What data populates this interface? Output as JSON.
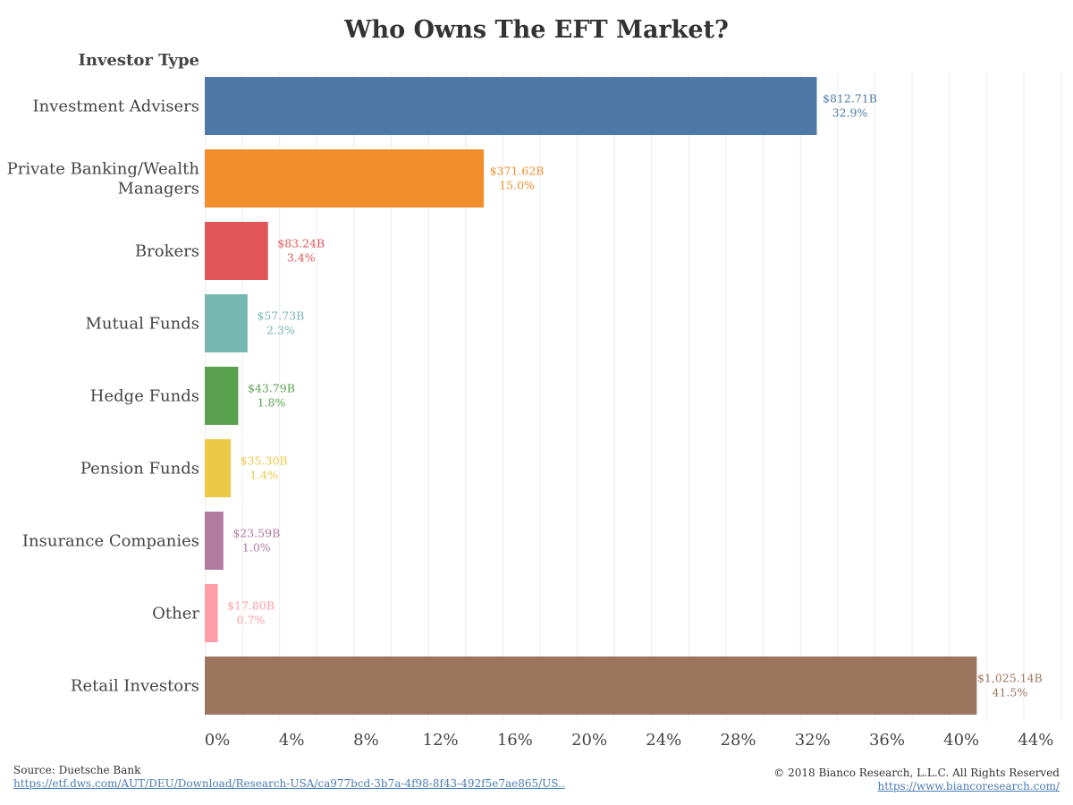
{
  "chart_data": {
    "type": "bar",
    "orientation": "horizontal",
    "title": "Who Owns The EFT Market?",
    "ylabel": "Investor Type",
    "xlabel": "",
    "xlim": [
      0,
      46
    ],
    "xticks": [
      "0%",
      "4%",
      "8%",
      "12%",
      "16%",
      "20%",
      "24%",
      "28%",
      "32%",
      "36%",
      "40%",
      "44%"
    ],
    "xtick_values": [
      0,
      4,
      8,
      12,
      16,
      20,
      24,
      28,
      32,
      36,
      40,
      44
    ],
    "grid": true,
    "categories": [
      {
        "label_lines": [
          "Investment Advisers"
        ],
        "value": 32.9,
        "amount": "$812.71B",
        "pct": "32.9%",
        "color": "#4e79a7"
      },
      {
        "label_lines": [
          "Private Banking/Wealth",
          "Managers"
        ],
        "value": 15.0,
        "amount": "$371.62B",
        "pct": "15.0%",
        "color": "#f28e2b"
      },
      {
        "label_lines": [
          "Brokers"
        ],
        "value": 3.4,
        "amount": "$83.24B",
        "pct": "3.4%",
        "color": "#e15759"
      },
      {
        "label_lines": [
          "Mutual Funds"
        ],
        "value": 2.3,
        "amount": "$57.73B",
        "pct": "2.3%",
        "color": "#76b7b2"
      },
      {
        "label_lines": [
          "Hedge Funds"
        ],
        "value": 1.8,
        "amount": "$43.79B",
        "pct": "1.8%",
        "color": "#59a14f"
      },
      {
        "label_lines": [
          "Pension Funds"
        ],
        "value": 1.4,
        "amount": "$35.30B",
        "pct": "1.4%",
        "color": "#edc948"
      },
      {
        "label_lines": [
          "Insurance Companies"
        ],
        "value": 1.0,
        "amount": "$23.59B",
        "pct": "1.0%",
        "color": "#b07aa1"
      },
      {
        "label_lines": [
          "Other"
        ],
        "value": 0.7,
        "amount": "$17.80B",
        "pct": "0.7%",
        "color": "#ff9da7"
      },
      {
        "label_lines": [
          "Retail Investors"
        ],
        "value": 41.5,
        "amount": "$1,025.14B",
        "pct": "41.5%",
        "color": "#9c755f"
      }
    ]
  },
  "footer": {
    "source": "Source: Duetsche Bank",
    "source_url": "https://etf.dws.com/AUT/DEU/Download/Research-USA/ca977bcd-3b7a-4f98-8f43-492f5e7ae865/US..",
    "copyright": "© 2018 Bianco Research, L.L.C. All Rights Reserved",
    "site_url": "https://www.biancoresearch.com/"
  }
}
